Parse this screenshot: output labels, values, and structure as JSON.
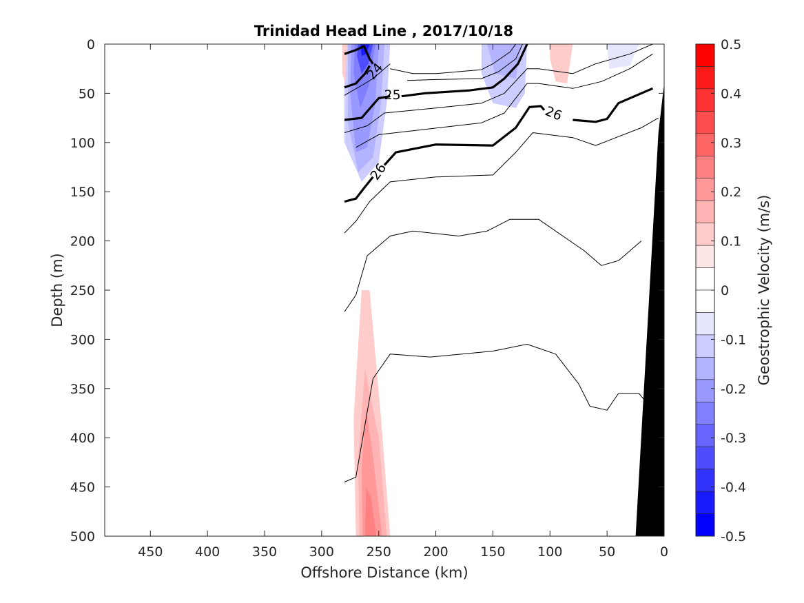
{
  "chart_data": {
    "type": "contour",
    "title": "Trinidad Head Line , 2017/10/18",
    "xlabel": "Offshore Distance (km)",
    "ylabel": "Depth (m)",
    "xlim": [
      490,
      0
    ],
    "ylim": [
      0,
      500
    ],
    "x_reversed": true,
    "y_reversed": true,
    "xticks": [
      450,
      400,
      350,
      300,
      250,
      200,
      150,
      100,
      50,
      0
    ],
    "yticks": [
      0,
      50,
      100,
      150,
      200,
      250,
      300,
      350,
      400,
      450,
      500
    ],
    "colorbar": {
      "label": "Geostrophic Velocity (m/s)",
      "range": [
        -0.5,
        0.5
      ],
      "levels": [
        -0.5,
        -0.45,
        -0.4,
        -0.35,
        -0.3,
        -0.25,
        -0.2,
        -0.15,
        -0.1,
        -0.05,
        0.05,
        0.1,
        0.15,
        0.2,
        0.25,
        0.3,
        0.35,
        0.4,
        0.45,
        0.5
      ],
      "ticks": [
        0.5,
        0.4,
        0.3,
        0.2,
        0.1,
        0,
        -0.1,
        -0.2,
        -0.3,
        -0.4,
        -0.5
      ],
      "tick_labels": [
        "0.5",
        "0.4",
        "0.3",
        "0.2",
        "0.1",
        "0",
        "-0.1",
        "-0.2",
        "-0.3",
        "-0.4",
        "-0.5"
      ],
      "colors": [
        "#0000ff",
        "#1a1aff",
        "#3333ff",
        "#4d4dff",
        "#6666ff",
        "#8080ff",
        "#9999ff",
        "#b3b3ff",
        "#ccccff",
        "#e6e6ff",
        "#ffffff",
        "#ffffff",
        "#ffe6e6",
        "#ffcccc",
        "#ffb3b3",
        "#ff9999",
        "#ff8080",
        "#ff6666",
        "#ff4d4d",
        "#ff3333",
        "#ff1a1a",
        "#ff0000"
      ]
    },
    "isopycnal_labels": [
      {
        "text": "24",
        "x": 253,
        "y": 28,
        "angle": -50
      },
      {
        "text": "25",
        "x": 238,
        "y": 52,
        "angle": 0
      },
      {
        "text": "26",
        "x": 97,
        "y": 71,
        "angle": 22
      },
      {
        "text": "26",
        "x": 250,
        "y": 130,
        "angle": -55
      }
    ],
    "velocity_patches": [
      {
        "level": -0.1,
        "points": [
          [
            280,
            0
          ],
          [
            240,
            0
          ],
          [
            243,
            60
          ],
          [
            250,
            120
          ],
          [
            265,
            140
          ],
          [
            280,
            100
          ]
        ]
      },
      {
        "level": -0.15,
        "points": [
          [
            277,
            0
          ],
          [
            245,
            0
          ],
          [
            248,
            60
          ],
          [
            255,
            115
          ],
          [
            268,
            130
          ],
          [
            277,
            80
          ]
        ]
      },
      {
        "level": -0.2,
        "points": [
          [
            274,
            0
          ],
          [
            250,
            0
          ],
          [
            253,
            60
          ],
          [
            260,
            105
          ],
          [
            270,
            110
          ],
          [
            275,
            50
          ]
        ]
      },
      {
        "level": -0.25,
        "points": [
          [
            271,
            0
          ],
          [
            253,
            0
          ],
          [
            258,
            40
          ],
          [
            266,
            65
          ],
          [
            272,
            30
          ]
        ]
      },
      {
        "level": -0.35,
        "points": [
          [
            268,
            0
          ],
          [
            255,
            0
          ],
          [
            259,
            20
          ],
          [
            265,
            30
          ],
          [
            269,
            12
          ]
        ]
      },
      {
        "level": -0.45,
        "points": [
          [
            266,
            0
          ],
          [
            258,
            0
          ],
          [
            261,
            10
          ],
          [
            265,
            12
          ]
        ]
      },
      {
        "level": -0.1,
        "points": [
          [
            160,
            0
          ],
          [
            120,
            0
          ],
          [
            122,
            50
          ],
          [
            130,
            65
          ],
          [
            150,
            60
          ],
          [
            160,
            30
          ]
        ]
      },
      {
        "level": -0.15,
        "points": [
          [
            155,
            0
          ],
          [
            125,
            0
          ],
          [
            130,
            35
          ],
          [
            148,
            30
          ]
        ]
      },
      {
        "level": -0.05,
        "points": [
          [
            50,
            0
          ],
          [
            22,
            0
          ],
          [
            30,
            22
          ],
          [
            48,
            25
          ]
        ]
      },
      {
        "level": 0.1,
        "points": [
          [
            100,
            0
          ],
          [
            80,
            0
          ],
          [
            85,
            40
          ],
          [
            95,
            38
          ],
          [
            100,
            15
          ]
        ]
      },
      {
        "level": 0.1,
        "points": [
          [
            282,
            0
          ],
          [
            278,
            0
          ],
          [
            279,
            40
          ],
          [
            282,
            30
          ]
        ]
      },
      {
        "level": 0.1,
        "points": [
          [
            270,
            500
          ],
          [
            240,
            500
          ],
          [
            248,
            380
          ],
          [
            258,
            250
          ],
          [
            265,
            250
          ],
          [
            272,
            380
          ]
        ]
      },
      {
        "level": 0.15,
        "points": [
          [
            267,
            500
          ],
          [
            243,
            500
          ],
          [
            250,
            400
          ],
          [
            262,
            330
          ],
          [
            268,
            420
          ]
        ]
      },
      {
        "level": 0.2,
        "points": [
          [
            264,
            500
          ],
          [
            247,
            500
          ],
          [
            255,
            420
          ],
          [
            261,
            370
          ],
          [
            265,
            430
          ]
        ]
      },
      {
        "level": 0.25,
        "points": [
          [
            262,
            500
          ],
          [
            252,
            500
          ],
          [
            257,
            460
          ],
          [
            261,
            450
          ]
        ]
      }
    ],
    "isopycnals": [
      {
        "bold": false,
        "points": [
          [
            280,
            10
          ],
          [
            270,
            6
          ],
          [
            265,
            3
          ]
        ]
      },
      {
        "bold": true,
        "points": [
          [
            280,
            10
          ],
          [
            270,
            6
          ],
          [
            263,
            2
          ],
          [
            258,
            15
          ],
          [
            255,
            20
          ]
        ]
      },
      {
        "bold": true,
        "points": [
          [
            280,
            44
          ],
          [
            270,
            40
          ],
          [
            262,
            30
          ],
          [
            258,
            22
          ]
        ]
      },
      {
        "bold": false,
        "points": [
          [
            280,
            52
          ],
          [
            265,
            42
          ],
          [
            255,
            35
          ],
          [
            248,
            28
          ],
          [
            240,
            20
          ]
        ]
      },
      {
        "bold": false,
        "points": [
          [
            240,
            25
          ],
          [
            220,
            30
          ],
          [
            200,
            30
          ],
          [
            160,
            26
          ],
          [
            150,
            20
          ],
          [
            135,
            8
          ],
          [
            130,
            0
          ]
        ]
      },
      {
        "bold": false,
        "points": [
          [
            225,
            37
          ],
          [
            200,
            36
          ],
          [
            160,
            35
          ],
          [
            145,
            28
          ],
          [
            130,
            15
          ],
          [
            124,
            0
          ]
        ]
      },
      {
        "bold": true,
        "points": [
          [
            230,
            53
          ],
          [
            210,
            50
          ],
          [
            170,
            47
          ],
          [
            150,
            44
          ],
          [
            140,
            35
          ],
          [
            128,
            20
          ],
          [
            120,
            0
          ]
        ]
      },
      {
        "bold": true,
        "points": [
          [
            280,
            77
          ],
          [
            265,
            75
          ],
          [
            250,
            55
          ],
          [
            240,
            53
          ]
        ]
      },
      {
        "bold": false,
        "points": [
          [
            280,
            90
          ],
          [
            260,
            83
          ],
          [
            245,
            70
          ],
          [
            200,
            65
          ],
          [
            160,
            60
          ],
          [
            140,
            50
          ],
          [
            120,
            25
          ],
          [
            110,
            25
          ],
          [
            80,
            30
          ],
          [
            60,
            20
          ],
          [
            30,
            10
          ],
          [
            10,
            0
          ]
        ]
      },
      {
        "bold": false,
        "points": [
          [
            270,
            105
          ],
          [
            250,
            92
          ],
          [
            220,
            88
          ],
          [
            160,
            80
          ],
          [
            140,
            70
          ],
          [
            120,
            40
          ],
          [
            110,
            40
          ],
          [
            80,
            45
          ],
          [
            55,
            38
          ],
          [
            30,
            25
          ],
          [
            10,
            10
          ]
        ]
      },
      {
        "bold": true,
        "points": [
          [
            280,
            160
          ],
          [
            270,
            157
          ],
          [
            262,
            145
          ],
          [
            255,
            135
          ]
        ]
      },
      {
        "bold": true,
        "points": [
          [
            245,
            123
          ],
          [
            235,
            110
          ],
          [
            200,
            102
          ],
          [
            150,
            103
          ],
          [
            130,
            85
          ],
          [
            118,
            64
          ],
          [
            108,
            63
          ],
          [
            105,
            67
          ]
        ]
      },
      {
        "bold": true,
        "points": [
          [
            80,
            77
          ],
          [
            60,
            79
          ],
          [
            50,
            76
          ],
          [
            40,
            60
          ],
          [
            10,
            45
          ]
        ]
      },
      {
        "bold": false,
        "points": [
          [
            280,
            192
          ],
          [
            270,
            180
          ],
          [
            258,
            160
          ],
          [
            240,
            140
          ],
          [
            200,
            135
          ],
          [
            150,
            133
          ],
          [
            130,
            110
          ],
          [
            115,
            90
          ],
          [
            80,
            95
          ],
          [
            60,
            103
          ],
          [
            20,
            85
          ],
          [
            5,
            75
          ]
        ]
      },
      {
        "bold": false,
        "points": [
          [
            280,
            272
          ],
          [
            270,
            255
          ],
          [
            260,
            215
          ],
          [
            240,
            195
          ],
          [
            220,
            190
          ],
          [
            180,
            195
          ],
          [
            155,
            190
          ],
          [
            135,
            178
          ],
          [
            110,
            178
          ],
          [
            70,
            210
          ],
          [
            55,
            225
          ],
          [
            40,
            220
          ],
          [
            20,
            200
          ]
        ]
      },
      {
        "bold": false,
        "points": [
          [
            280,
            445
          ],
          [
            270,
            440
          ],
          [
            255,
            340
          ],
          [
            240,
            315
          ],
          [
            205,
            318
          ],
          [
            150,
            312
          ],
          [
            120,
            305
          ],
          [
            95,
            315
          ],
          [
            75,
            345
          ],
          [
            65,
            368
          ],
          [
            50,
            372
          ],
          [
            40,
            355
          ],
          [
            22,
            355
          ],
          [
            15,
            365
          ]
        ]
      }
    ],
    "land": {
      "points": [
        [
          0,
          0
        ],
        [
          -2,
          500
        ],
        [
          25,
          500
        ],
        [
          5,
          90
        ],
        [
          0,
          40
        ]
      ]
    }
  }
}
